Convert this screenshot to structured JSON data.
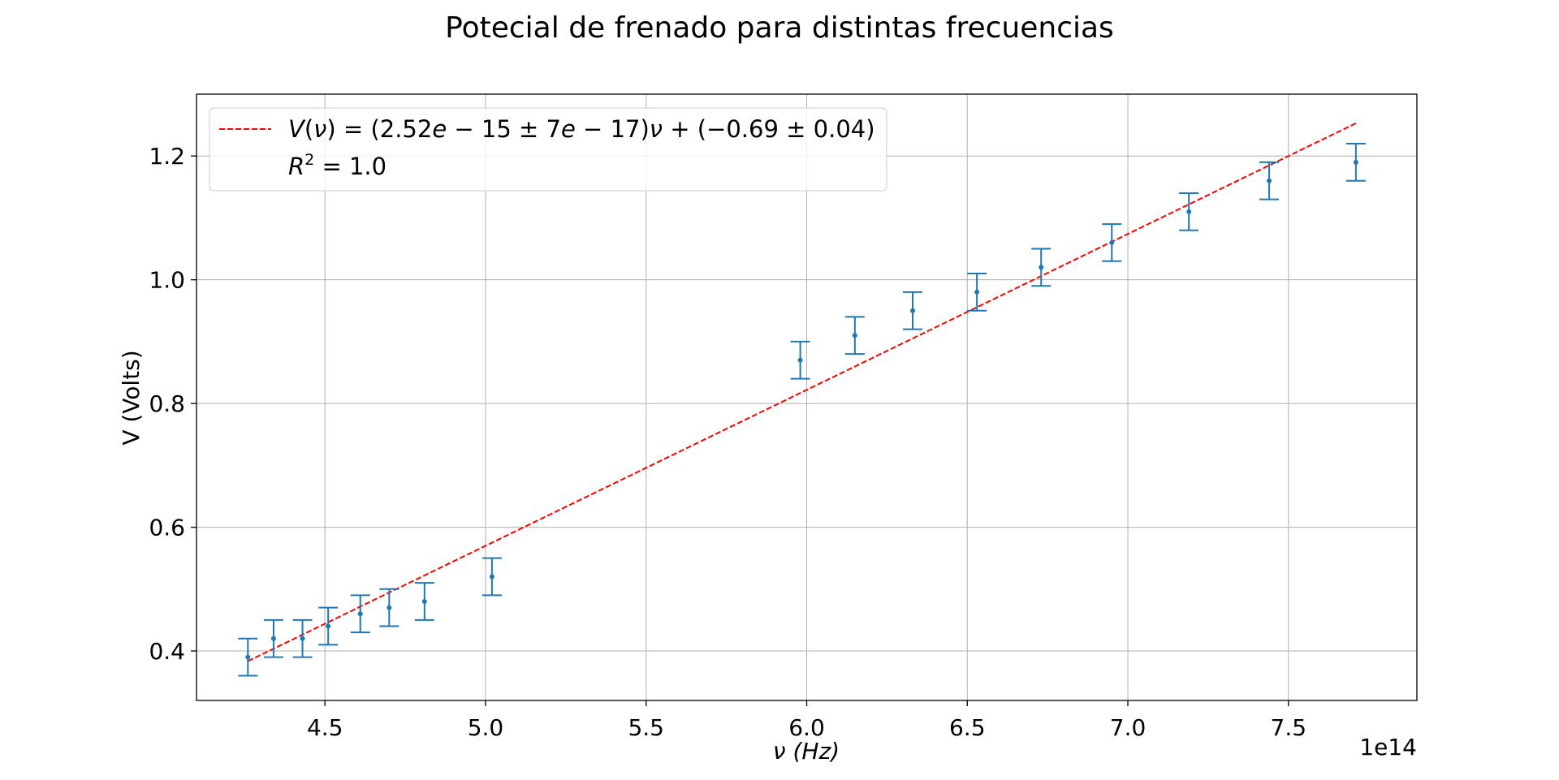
{
  "chart_data": {
    "type": "scatter",
    "title": "Potecial de frenado para distintas frecuencias",
    "xlabel": "ν (Hz)",
    "ylabel": "V (Volts)",
    "x_offset_label": "1e14",
    "xlim": [
      410000000000000.0,
      790000000000000.0
    ],
    "ylim": [
      0.32,
      1.3
    ],
    "xticks": [
      450000000000000.0,
      500000000000000.0,
      550000000000000.0,
      600000000000000.0,
      650000000000000.0,
      700000000000000.0,
      750000000000000.0
    ],
    "xtick_labels": [
      "4.5",
      "5.0",
      "5.5",
      "6.0",
      "6.5",
      "7.0",
      "7.5"
    ],
    "yticks": [
      0.4,
      0.6,
      0.8,
      1.0,
      1.2
    ],
    "ytick_labels": [
      "0.4",
      "0.6",
      "0.8",
      "1.0",
      "1.2"
    ],
    "grid": true,
    "legend_position": "top-left",
    "series": [
      {
        "kind": "errorbar",
        "color": "#1f77b4",
        "x": [
          426000000000000.0,
          434000000000000.0,
          443000000000000.0,
          451000000000000.0,
          461000000000000.0,
          470000000000000.0,
          481000000000000.0,
          502000000000000.0,
          598000000000000.0,
          615000000000000.0,
          633000000000000.0,
          653000000000000.0,
          673000000000000.0,
          695000000000000.0,
          719000000000000.0,
          744000000000000.0,
          771000000000000.0
        ],
        "y": [
          0.39,
          0.42,
          0.42,
          0.44,
          0.46,
          0.47,
          0.48,
          0.52,
          0.87,
          0.91,
          0.95,
          0.98,
          1.02,
          1.06,
          1.11,
          1.16,
          1.19
        ],
        "yerr": [
          0.03,
          0.03,
          0.03,
          0.03,
          0.03,
          0.03,
          0.03,
          0.03,
          0.03,
          0.03,
          0.03,
          0.03,
          0.03,
          0.03,
          0.03,
          0.03,
          0.03
        ]
      },
      {
        "kind": "fit-line",
        "color": "#ff0000",
        "linestyle": "dashed",
        "slope": 2.52e-15,
        "intercept": -0.69,
        "x_range": [
          426000000000000.0,
          771000000000000.0
        ]
      }
    ],
    "legend": {
      "line1": {
        "V": "V",
        "nu": "ν",
        "eq": " = (2.52",
        "e1": "e",
        "m1": " − 15 ± 7",
        "e2": "e",
        "m2": " − 17)",
        "nu2": "ν",
        "tail": " + (−0.69 ± 0.04)"
      },
      "line2": {
        "R": "R",
        "sup": "2",
        "eq": " = 1.0"
      }
    }
  }
}
